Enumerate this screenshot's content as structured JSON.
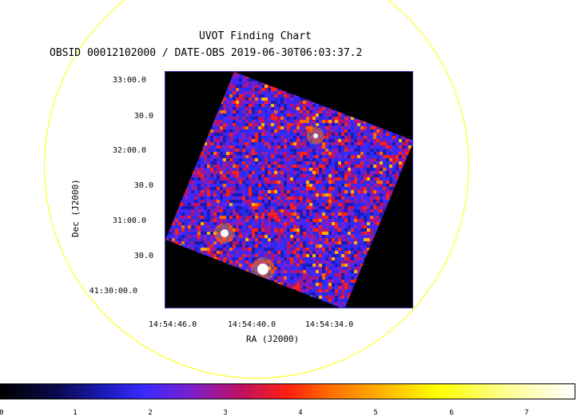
{
  "chart_data": {
    "type": "heatmap",
    "title": "UVOT Finding Chart",
    "subtitle": "OBSID 00012102000 / DATE-OBS 2019-06-30T06:03:37.2",
    "xlabel": "RA (J2000)",
    "ylabel": "Dec (J2000)",
    "x_ticks": [
      "14:54:46.0",
      "14:54:40.0",
      "14:54:34.0"
    ],
    "y_ticks": [
      "33:00.0",
      "30.0",
      "32:00.0",
      "30.0",
      "31:00.0",
      "30.0",
      "41:30:00.0"
    ],
    "colorbar": {
      "ticks": [
        "0",
        "1",
        "2",
        "3",
        "4",
        "5",
        "6",
        "7"
      ],
      "colors": [
        "#000000",
        "#1a1ab8",
        "#3a2aff",
        "#c01060",
        "#ff2010",
        "#ffb000",
        "#ffff00",
        "#ffffff"
      ]
    },
    "colors": {
      "fov_circle": "#ffff00",
      "background": "#000000"
    }
  }
}
